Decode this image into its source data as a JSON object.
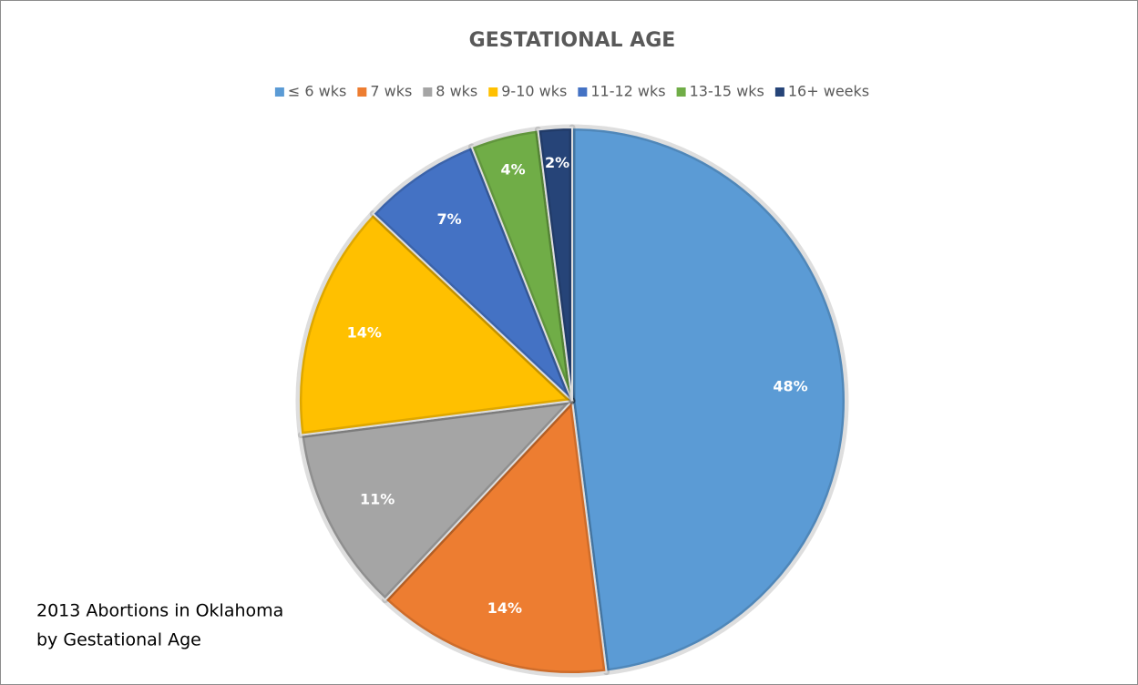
{
  "chart_data": {
    "type": "pie",
    "title": "GESTATIONAL AGE",
    "categories": [
      "≤ 6 wks",
      "7 wks",
      "8 wks",
      "9-10 wks",
      "11-12 wks",
      "13-15 wks",
      "16+ weeks"
    ],
    "values": [
      48,
      14,
      11,
      14,
      7,
      4,
      2
    ],
    "value_labels": [
      "48%",
      "14%",
      "11%",
      "14%",
      "7%",
      "4%",
      "2%"
    ],
    "colors": [
      "#5b9bd5",
      "#ed7d31",
      "#a5a5a5",
      "#ffc000",
      "#4472c4",
      "#70ad47",
      "#264478"
    ],
    "legend": "top",
    "annotation": [
      "2013 Abortions in Oklahoma",
      "by Gestational Age"
    ]
  }
}
